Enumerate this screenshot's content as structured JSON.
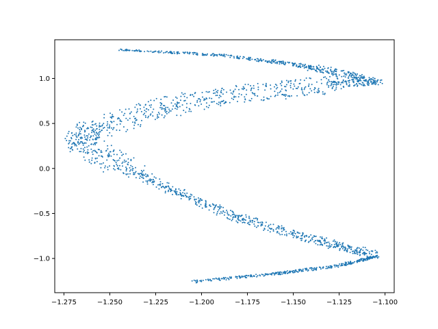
{
  "chart_data": {
    "type": "scatter",
    "title": "",
    "xlabel": "",
    "ylabel": "",
    "xlim": [
      -1.28,
      -1.095
    ],
    "ylim": [
      -1.38,
      1.43
    ],
    "xticks": [
      -1.275,
      -1.25,
      -1.225,
      -1.2,
      -1.175,
      -1.15,
      -1.125,
      -1.1
    ],
    "yticks": [
      -1.0,
      -0.5,
      0.0,
      0.5,
      1.0
    ],
    "xtick_labels": [
      "−1.275",
      "−1.250",
      "−1.225",
      "−1.200",
      "−1.175",
      "−1.150",
      "−1.125",
      "−1.100"
    ],
    "ytick_labels": [
      "−1.0",
      "−0.5",
      "0.0",
      "0.5",
      "1.0"
    ],
    "grid": false,
    "legend": "none",
    "marker_color": "#1f77b4",
    "series": [
      {
        "marker": "dot",
        "curve_spine": [
          {
            "x": -1.245,
            "y": 1.32
          },
          {
            "x": -1.19,
            "y": 1.26
          },
          {
            "x": -1.15,
            "y": 1.16
          },
          {
            "x": -1.125,
            "y": 1.06
          },
          {
            "x": -1.104,
            "y": 0.96
          },
          {
            "x": -1.13,
            "y": 0.93
          },
          {
            "x": -1.165,
            "y": 0.86
          },
          {
            "x": -1.2,
            "y": 0.77
          },
          {
            "x": -1.23,
            "y": 0.63
          },
          {
            "x": -1.255,
            "y": 0.46
          },
          {
            "x": -1.268,
            "y": 0.33
          },
          {
            "x": -1.255,
            "y": 0.15
          },
          {
            "x": -1.235,
            "y": -0.05
          },
          {
            "x": -1.21,
            "y": -0.3
          },
          {
            "x": -1.18,
            "y": -0.55
          },
          {
            "x": -1.15,
            "y": -0.73
          },
          {
            "x": -1.125,
            "y": -0.86
          },
          {
            "x": -1.104,
            "y": -0.97
          },
          {
            "x": -1.125,
            "y": -1.08
          },
          {
            "x": -1.16,
            "y": -1.17
          },
          {
            "x": -1.205,
            "y": -1.26
          }
        ]
      }
    ]
  }
}
